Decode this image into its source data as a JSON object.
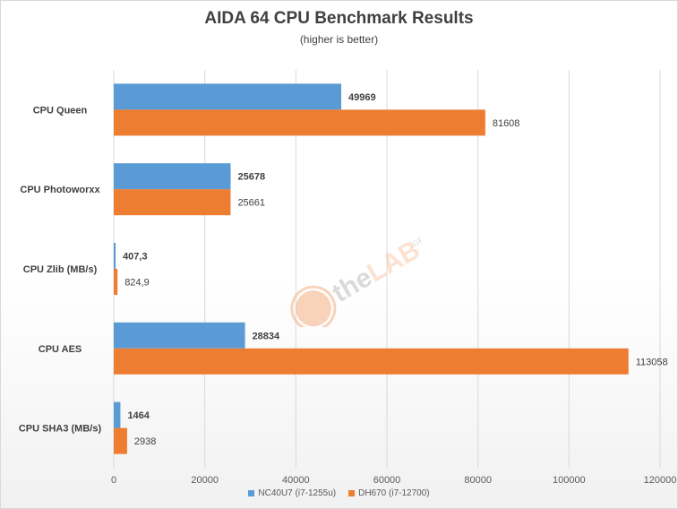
{
  "chart_data": {
    "type": "bar",
    "orientation": "horizontal",
    "title": "AIDA 64 CPU Benchmark Results",
    "subtitle": "(higher is better)",
    "categories": [
      "CPU Queen",
      "CPU Photoworxx",
      "CPU Zlib (MB/s)",
      "CPU AES",
      "CPU SHA3 (MB/s)"
    ],
    "series": [
      {
        "name": "NC40U7 (i7-1255u)",
        "color": "#5b9bd5",
        "values": [
          49969,
          25678,
          407.3,
          28834,
          1464
        ],
        "labels": [
          "49969",
          "25678",
          "407,3",
          "28834",
          "1464"
        ]
      },
      {
        "name": "DH670 (i7-12700)",
        "color": "#ed7d31",
        "values": [
          81608,
          25661,
          824.9,
          113058,
          2938
        ],
        "labels": [
          "81608",
          "25661",
          "824,9",
          "113058",
          "2938"
        ]
      }
    ],
    "xlim": [
      0,
      120000
    ],
    "xticks": [
      "0",
      "20000",
      "40000",
      "60000",
      "80000",
      "100000",
      "120000"
    ],
    "xtick_values": [
      0,
      20000,
      40000,
      60000,
      80000,
      100000,
      120000
    ],
    "grid": true,
    "legend": "bottom"
  },
  "watermark": {
    "text_the": "the",
    "text_lab": "LAB",
    "text_gr": ".GR"
  }
}
